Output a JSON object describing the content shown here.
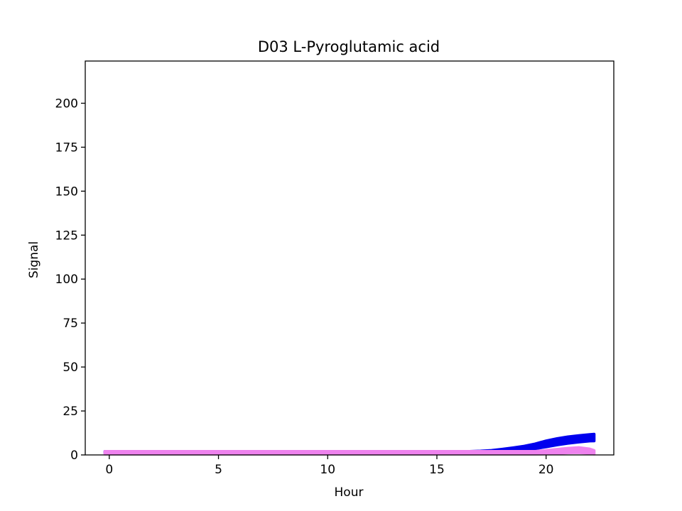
{
  "chart_data": {
    "type": "area",
    "title": "D03 L-Pyroglutamic acid",
    "xlabel": "Hour",
    "ylabel": "Signal",
    "xlim": [
      -1.1,
      23.1
    ],
    "ylim": [
      0,
      224
    ],
    "xticks": [
      0,
      5,
      10,
      15,
      20
    ],
    "yticks": [
      0,
      25,
      50,
      75,
      100,
      125,
      150,
      175,
      200
    ],
    "grid": false,
    "series": [
      {
        "color": "#0000ee",
        "x": [
          -0.2,
          2,
          4,
          6,
          8,
          10,
          12,
          14,
          16,
          16.5,
          17,
          17.5,
          18,
          18.5,
          19,
          19.5,
          20,
          20.5,
          21,
          21.5,
          22,
          22.2
        ],
        "lower": [
          1,
          1,
          1,
          1,
          1,
          1,
          1,
          1,
          1,
          1,
          1,
          1.2,
          1.6,
          2.1,
          2.7,
          3.5,
          4.6,
          5.7,
          6.6,
          7.3,
          7.9,
          8.0
        ],
        "upper": [
          2,
          2,
          2,
          2,
          2,
          2,
          2,
          2,
          2,
          2,
          2.2,
          2.6,
          3.3,
          4.1,
          5.0,
          6.3,
          8.0,
          9.3,
          10.3,
          11.0,
          11.6,
          11.8
        ]
      },
      {
        "color": "#ee82ee",
        "x": [
          -0.2,
          2,
          4,
          6,
          8,
          10,
          12,
          14,
          16,
          18,
          19.5,
          20,
          20.5,
          21,
          21.5,
          22,
          22.2
        ],
        "lower": [
          0.5,
          0.5,
          0.5,
          0.5,
          0.5,
          0.5,
          0.5,
          0.5,
          0.5,
          0.5,
          0.5,
          0.6,
          0.8,
          1.2,
          1.3,
          0.9,
          0.5
        ],
        "upper": [
          2,
          2,
          2,
          2,
          2,
          2,
          2,
          2,
          2,
          2,
          2,
          2.5,
          3.2,
          3.8,
          4.2,
          3.4,
          2.5
        ]
      }
    ]
  }
}
